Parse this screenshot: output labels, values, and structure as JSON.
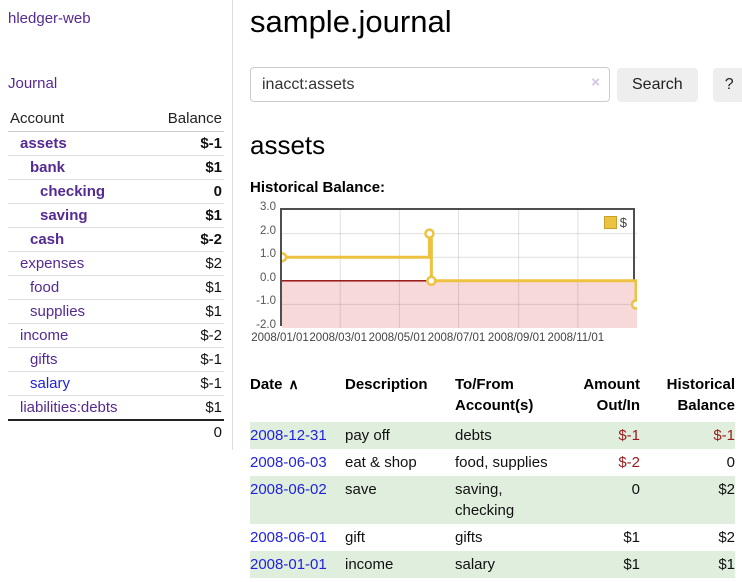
{
  "app": {
    "brand": "hledger-web",
    "nav": [
      {
        "label": "Journal"
      }
    ]
  },
  "sidebar": {
    "col_account": "Account",
    "col_balance": "Balance",
    "accounts": [
      {
        "name": "assets",
        "depth": 1,
        "bold": true,
        "link": "purple",
        "balance": "$-1",
        "tone": "neg"
      },
      {
        "name": "bank",
        "depth": 2,
        "bold": true,
        "link": "purple",
        "balance": "$1",
        "tone": "plain"
      },
      {
        "name": "checking",
        "depth": 3,
        "bold": true,
        "link": "purple",
        "balance": "0",
        "tone": "plain"
      },
      {
        "name": "saving",
        "depth": 3,
        "bold": true,
        "link": "purple",
        "balance": "$1",
        "tone": "plain"
      },
      {
        "name": "cash",
        "depth": 2,
        "bold": true,
        "link": "purple",
        "balance": "$-2",
        "tone": "neg"
      },
      {
        "name": "expenses",
        "depth": 1,
        "bold": false,
        "link": "purple",
        "balance": "$2",
        "tone": "plain"
      },
      {
        "name": "food",
        "depth": 2,
        "bold": false,
        "link": "purple",
        "balance": "$1",
        "tone": "plain"
      },
      {
        "name": "supplies",
        "depth": 2,
        "bold": false,
        "link": "purple",
        "balance": "$1",
        "tone": "plain"
      },
      {
        "name": "income",
        "depth": 1,
        "bold": false,
        "link": "purple",
        "balance": "$-2",
        "tone": "muted"
      },
      {
        "name": "gifts",
        "depth": 2,
        "bold": false,
        "link": "purple",
        "balance": "$-1",
        "tone": "muted"
      },
      {
        "name": "salary",
        "depth": 2,
        "bold": false,
        "link": "blue",
        "balance": "$-1",
        "tone": "muted"
      },
      {
        "name": "liabilities:debts",
        "depth": 1,
        "bold": false,
        "link": "purple",
        "balance": "$1",
        "tone": "plain"
      }
    ],
    "total": "0"
  },
  "main": {
    "title": "sample.journal",
    "search": {
      "value": "inacct:assets",
      "clear_icon": "×",
      "search_button": "Search",
      "help_button": "?"
    },
    "account_heading": "assets",
    "section_label": "Historical Balance:"
  },
  "chart_data": {
    "type": "line",
    "step": true,
    "title": "Historical Balance:",
    "series": [
      {
        "name": "$",
        "points": [
          {
            "date": "2008-01-01",
            "value": 1
          },
          {
            "date": "2008-06-01",
            "value": 2
          },
          {
            "date": "2008-06-03",
            "value": 0
          },
          {
            "date": "2008-12-31",
            "value": -1
          }
        ]
      }
    ],
    "xrange": [
      "2008-01-01",
      "2009-01-01"
    ],
    "ylim": [
      -2,
      3
    ],
    "yticks": [
      3.0,
      2.0,
      1.0,
      0.0,
      -1.0,
      -2.0
    ],
    "xticks": [
      {
        "date": "2008-01-01",
        "label": "2008/01/01"
      },
      {
        "date": "2008-03-01",
        "label": "2008/03/01"
      },
      {
        "date": "2008-05-01",
        "label": "2008/05/01"
      },
      {
        "date": "2008-07-01",
        "label": "2008/07/01"
      },
      {
        "date": "2008-09-01",
        "label": "2008/09/01"
      },
      {
        "date": "2008-11-01",
        "label": "2008/11/01"
      }
    ],
    "legend": {
      "label": "$",
      "position": "top-right"
    },
    "grid": true,
    "line_color": "#edc240",
    "marker_fill": "#ffffff",
    "zero_line_color": "#8b0000",
    "negative_region_color": "#f8d9d9"
  },
  "register": {
    "headers": [
      "Date",
      "Description",
      "To/From Account(s)",
      "Amount Out/In",
      "Historical Balance"
    ],
    "sort_icon": "∧",
    "rows": [
      {
        "date": "2008-12-31",
        "description": "pay off",
        "accounts": "debts",
        "amount": "$-1",
        "balance": "$-1"
      },
      {
        "date": "2008-06-03",
        "description": "eat & shop",
        "accounts": "food, supplies",
        "amount": "$-2",
        "balance": "0"
      },
      {
        "date": "2008-06-02",
        "description": "save",
        "accounts": "saving, checking",
        "amount": "0",
        "balance": "$2"
      },
      {
        "date": "2008-06-01",
        "description": "gift",
        "accounts": "gifts",
        "amount": "$1",
        "balance": "$2"
      },
      {
        "date": "2008-01-01",
        "description": "income",
        "accounts": "salary",
        "amount": "$1",
        "balance": "$1"
      }
    ]
  },
  "colors": {
    "link_purple": "#552a93",
    "link_blue": "#2222dd",
    "negative_strong": "#9b1c1c",
    "negative_muted": "#c28181",
    "row_stripe_green": "#dfeedd",
    "chart_line_yellow": "#edc240",
    "chart_negative_pink": "#f8d9d9",
    "chart_zero_line": "#8b0000"
  }
}
